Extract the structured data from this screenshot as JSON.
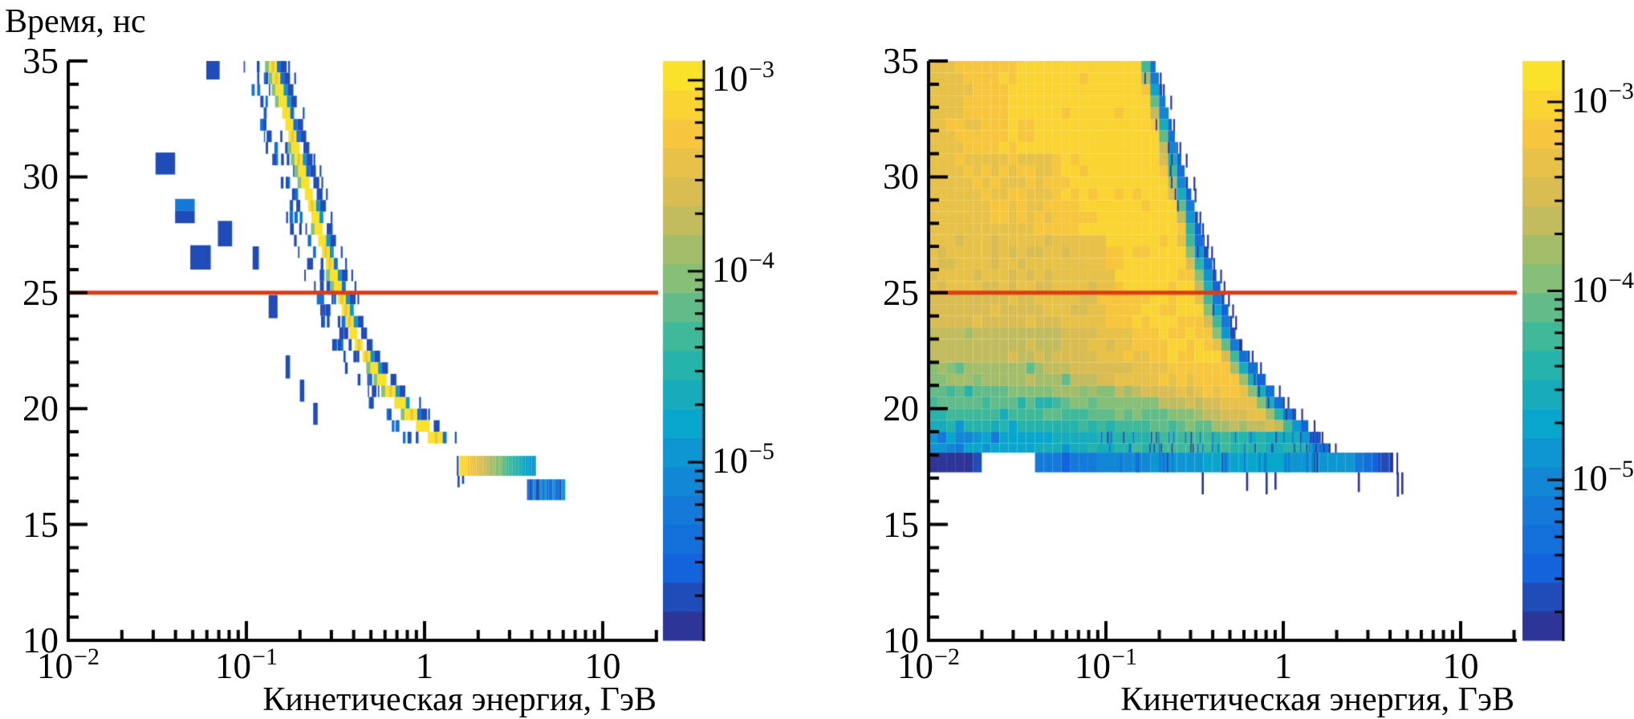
{
  "figure": {
    "background": "#ffffff",
    "axis_color": "#000000",
    "red_line_color": "#E23A10",
    "palette_stops": [
      "#352A87",
      "#1263DC",
      "#1580D8",
      "#08A5CC",
      "#2DB7A3",
      "#86BF77",
      "#D1BB59",
      "#F7C63C",
      "#FBE926"
    ],
    "palette_levels": 20
  },
  "chart_data": [
    {
      "type": "heatmap",
      "panel": "left",
      "title": "",
      "ylabel": "Время, нс",
      "xlabel": "Кинетическая энергия, ГэВ",
      "xscale": "log",
      "xlim": [
        0.01,
        20
      ],
      "ylim": [
        10,
        35
      ],
      "grid": false,
      "x_ticks": [
        {
          "base": "10",
          "sup": "−2",
          "log": -2
        },
        {
          "base": "10",
          "sup": "−1",
          "log": -1
        },
        {
          "base": "1",
          "sup": "",
          "log": 0
        },
        {
          "base": "10",
          "sup": "",
          "log": 1
        }
      ],
      "y_ticks": [
        {
          "label": "10",
          "v": 10
        },
        {
          "label": "15",
          "v": 15
        },
        {
          "label": "20",
          "v": 20
        },
        {
          "label": "25",
          "v": 25
        },
        {
          "label": "30",
          "v": 30
        },
        {
          "label": "35",
          "v": 35
        }
      ],
      "red_line_y": 25,
      "colorbar": {
        "zscale": "log",
        "z_log_min": -5.93,
        "z_log_max": -2.89,
        "ticks": [
          {
            "base": "10",
            "sup": "−3",
            "logv": -3
          },
          {
            "base": "10",
            "sup": "−4",
            "logv": -4
          },
          {
            "base": "10",
            "sup": "−5",
            "logv": -5
          }
        ]
      },
      "tof_ridge_t_logE": [
        [
          16,
          0.72
        ],
        [
          16.5,
          0.58
        ],
        [
          17,
          0.44
        ],
        [
          17.5,
          0.31
        ],
        [
          18,
          0.175
        ],
        [
          18.5,
          0.105
        ],
        [
          19,
          0.035
        ],
        [
          19.5,
          -0.035
        ],
        [
          20,
          -0.1
        ],
        [
          20.5,
          -0.16
        ],
        [
          21,
          -0.21
        ],
        [
          22,
          -0.3
        ],
        [
          23,
          -0.385
        ],
        [
          24,
          -0.425
        ],
        [
          25,
          -0.47
        ],
        [
          27,
          -0.56
        ],
        [
          29,
          -0.635
        ],
        [
          31,
          -0.71
        ],
        [
          33,
          -0.78
        ],
        [
          35,
          -0.855
        ]
      ],
      "band": {
        "core": 0.00105,
        "gold": 0.00045,
        "green": 0.000105,
        "cyan": 1.2e-05,
        "blue": 4.5e-06,
        "navy": 1.8e-06,
        "rows_t_step": 0.5,
        "rows_t_min": 18.5,
        "rows_t_max": 35
      },
      "outlier_cells": [
        [
          34.2,
          35.0,
          -1.225,
          -1.15,
          1.8e-06
        ],
        [
          30.1,
          31.05,
          -1.51,
          -1.4,
          1.8e-06
        ],
        [
          28.55,
          29.05,
          -1.4,
          -1.29,
          5e-06
        ],
        [
          28.0,
          28.55,
          -1.4,
          -1.29,
          1.8e-06
        ],
        [
          26.0,
          27.05,
          -1.315,
          -1.2,
          1.8e-06
        ],
        [
          27.0,
          28.1,
          -1.16,
          -1.08,
          1.8e-06
        ],
        [
          26.0,
          27.0,
          -0.965,
          -0.93,
          1.8e-06
        ],
        [
          23.9,
          24.9,
          -0.875,
          -0.825,
          1.8e-06
        ],
        [
          21.3,
          22.3,
          -0.78,
          -0.755,
          1.8e-06
        ],
        [
          20.3,
          21.25,
          -0.7,
          -0.675,
          1.8e-06
        ],
        [
          19.3,
          20.25,
          -0.625,
          -0.6,
          1.8e-06
        ]
      ],
      "bottom_bar": {
        "t": [
          17.1,
          17.96
        ],
        "logE": [
          0.195,
          0.625
        ],
        "v": [
          0.00095,
          1e-05
        ]
      },
      "bottom_stub": {
        "t": [
          16.05,
          16.95
        ],
        "logE": [
          0.575,
          0.79
        ],
        "values": [
          1.2e-05,
          4.5e-06,
          1.8e-06
        ]
      },
      "hanging_sticks": [
        [
          0.185,
          16.6,
          17.1
        ],
        [
          0.21,
          16.75,
          17.1
        ]
      ],
      "texture_seed": 7
    },
    {
      "type": "heatmap",
      "panel": "right",
      "title": "",
      "ylabel": "",
      "xlabel": "Кинетическая энергия, ГэВ",
      "xscale": "log",
      "xlim": [
        0.01,
        20
      ],
      "ylim": [
        10,
        35
      ],
      "grid": false,
      "x_ticks": [
        {
          "base": "10",
          "sup": "−2",
          "log": -2
        },
        {
          "base": "10",
          "sup": "−1",
          "log": -1
        },
        {
          "base": "1",
          "sup": "",
          "log": 0
        },
        {
          "base": "10",
          "sup": "",
          "log": 1
        }
      ],
      "y_ticks": [
        {
          "label": "10",
          "v": 10
        },
        {
          "label": "15",
          "v": 15
        },
        {
          "label": "20",
          "v": 20
        },
        {
          "label": "25",
          "v": 25
        },
        {
          "label": "30",
          "v": 30
        },
        {
          "label": "35",
          "v": 35
        }
      ],
      "red_line_y": 25,
      "colorbar": {
        "zscale": "log",
        "z_log_min": -5.85,
        "z_log_max": -2.78,
        "ticks": [
          {
            "base": "10",
            "sup": "−3",
            "logv": -3
          },
          {
            "base": "10",
            "sup": "−4",
            "logv": -4
          },
          {
            "base": "10",
            "sup": "−5",
            "logv": -5
          }
        ]
      },
      "tof_ridge_t_logE": [
        [
          16,
          0.72
        ],
        [
          16.5,
          0.58
        ],
        [
          17,
          0.44
        ],
        [
          17.5,
          0.31
        ],
        [
          18,
          0.175
        ],
        [
          18.5,
          0.105
        ],
        [
          19,
          0.035
        ],
        [
          19.5,
          -0.035
        ],
        [
          20,
          -0.1
        ],
        [
          20.5,
          -0.16
        ],
        [
          21,
          -0.21
        ],
        [
          22,
          -0.3
        ],
        [
          23,
          -0.385
        ],
        [
          24,
          -0.425
        ],
        [
          25,
          -0.47
        ],
        [
          27,
          -0.56
        ],
        [
          29,
          -0.635
        ],
        [
          31,
          -0.71
        ],
        [
          33,
          -0.78
        ],
        [
          35,
          -0.855
        ]
      ],
      "edge_offset": 0.12,
      "fill_bands": [
        {
          "t": [
            31,
            35.01
          ],
          "fw": 0.1,
          "stops": [
            {
              "a": -2,
              "v": 0.00046
            },
            {
              "a": -1.4,
              "v": 0.00095
            }
          ]
        },
        {
          "t": [
            27.5,
            31
          ],
          "fw": 0.12,
          "stops": [
            {
              "a": -2,
              "v": 0.00046
            },
            {
              "a": -1.3,
              "v": 0.0006
            },
            {
              "r": -0.6,
              "v": 0.00095
            }
          ]
        },
        {
          "t": [
            25,
            27.5
          ],
          "fw": 0.15,
          "stops": [
            {
              "a": -2,
              "v": 0.00042
            },
            {
              "a": -1.0,
              "v": 0.00046
            },
            {
              "r": -0.55,
              "v": 0.00092
            }
          ]
        },
        {
          "t": [
            23.5,
            25
          ],
          "fw": 0.16,
          "stops": [
            {
              "a": -2,
              "v": 0.00032
            },
            {
              "a": -1.1,
              "v": 0.00042
            },
            {
              "r": -0.5,
              "v": 0.00085
            }
          ]
        },
        {
          "t": [
            22,
            23.5
          ],
          "fw": 0.16,
          "stops": [
            {
              "a": -2,
              "v": 0.0002
            },
            {
              "a": -1.2,
              "v": 0.0003
            },
            {
              "r": -0.45,
              "v": 0.0008
            }
          ]
        },
        {
          "t": [
            21,
            22
          ],
          "fw": 0.17,
          "stops": [
            {
              "a": -2,
              "v": 0.000125
            },
            {
              "a": -1.3,
              "v": 0.0002
            },
            {
              "r": -0.4,
              "v": 0.0007
            }
          ]
        },
        {
          "t": [
            20.3,
            21
          ],
          "fw": 0.17,
          "stops": [
            {
              "a": -2,
              "v": 9e-05
            },
            {
              "a": -1.0,
              "v": 0.00015
            },
            {
              "r": -0.35,
              "v": 0.0006
            }
          ]
        },
        {
          "t": [
            19.8,
            20.3
          ],
          "fw": 0.17,
          "stops": [
            {
              "a": -2,
              "v": 6.5e-05
            },
            {
              "a": -0.8,
              "v": 0.00012
            },
            {
              "r": -0.3,
              "v": 0.0005
            }
          ]
        },
        {
          "t": [
            19.3,
            19.8
          ],
          "fw": 0.17,
          "stops": [
            {
              "a": -2,
              "v": 5e-05
            },
            {
              "a": -0.6,
              "v": 0.0001
            },
            {
              "r": -0.35,
              "v": 0.00035
            }
          ]
        },
        {
          "t": [
            18.8,
            19.3
          ],
          "fw": 0.16,
          "stops": [
            {
              "a": -2,
              "v": 3.2e-05
            },
            {
              "a": -1.0,
              "v": 4.5e-05
            },
            {
              "a": -0.45,
              "v": 0.0001
            },
            {
              "r": -0.3,
              "v": 0.00025
            }
          ]
        },
        {
          "t": [
            18.1,
            18.8
          ],
          "fw": 0.12,
          "speckle": true,
          "stops": [
            {
              "a": -2,
              "v": 1.4e-05
            },
            {
              "a": -1.35,
              "v": 2.4e-05
            },
            {
              "a": -0.5,
              "v": 6e-05
            },
            {
              "r": -0.3,
              "v": 3e-05
            }
          ]
        },
        {
          "t": [
            17.2,
            18.1
          ],
          "fw": 0.25,
          "edge": 0.62,
          "speckle": true,
          "stops": [
            {
              "a": -2,
              "v": 1.8e-06
            },
            {
              "a": -1.68,
              "v": 0
            },
            {
              "a": -1.38,
              "v": 5.5e-06
            },
            {
              "a": -1.1,
              "v": 8e-06
            },
            {
              "a": -0.6,
              "v": 1.4e-05
            },
            {
              "a": -0.2,
              "v": 2e-05
            },
            {
              "a": 0.2,
              "v": 1.5e-05
            },
            {
              "a": 0.37,
              "v": 1.2e-05
            }
          ]
        }
      ],
      "hanging_sticks": [
        [
          -0.46,
          16.3,
          17.25
        ],
        [
          -0.21,
          16.45,
          17.25
        ],
        [
          -0.1,
          16.3,
          17.25
        ],
        [
          -0.05,
          16.5,
          17.25
        ],
        [
          0.42,
          16.4,
          17.25
        ],
        [
          0.64,
          16.2,
          17.25
        ],
        [
          0.665,
          16.3,
          17.25
        ]
      ],
      "texture_seed": 11
    }
  ]
}
